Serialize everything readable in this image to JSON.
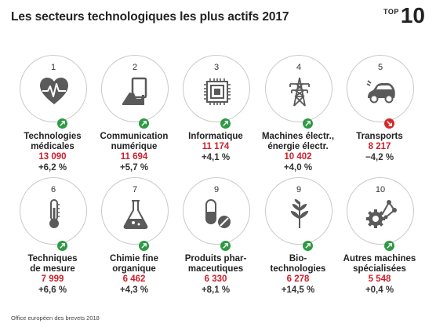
{
  "header": {
    "title": "Les secteurs technologiques les plus actifs 2017",
    "badge_top": "TOP",
    "badge_ten": "10"
  },
  "colors": {
    "up": "#2e9a44",
    "down": "#d62828",
    "count": "#cc1f2a"
  },
  "sectors": [
    {
      "rank": "1",
      "name_lines": [
        "Technologies",
        "médicales"
      ],
      "count": "13 090",
      "change": "+6,2 %",
      "trend": "up",
      "icon": "heartbeat-icon"
    },
    {
      "rank": "2",
      "name_lines": [
        "Communication",
        "numérique"
      ],
      "count": "11 694",
      "change": "+5,7 %",
      "trend": "up",
      "icon": "tablet-hand-icon"
    },
    {
      "rank": "3",
      "name_lines": [
        "Informatique",
        ""
      ],
      "count": "11 174",
      "change": "+4,1 %",
      "trend": "up",
      "icon": "chip-icon"
    },
    {
      "rank": "4",
      "name_lines": [
        "Machines électr.,",
        "énergie électr."
      ],
      "count": "10 402",
      "change": "+4,0 %",
      "trend": "up",
      "icon": "power-pylon-icon"
    },
    {
      "rank": "5",
      "name_lines": [
        "Transports",
        ""
      ],
      "count": "8 217",
      "change": "−4,2 %",
      "trend": "down",
      "icon": "electric-car-icon"
    },
    {
      "rank": "6",
      "name_lines": [
        "Techniques",
        "de mesure"
      ],
      "count": "7 999",
      "change": "+6,6 %",
      "trend": "up",
      "icon": "thermometer-icon"
    },
    {
      "rank": "7",
      "name_lines": [
        "Chimie fine",
        "organique"
      ],
      "count": "6 462",
      "change": "+4,3 %",
      "trend": "up",
      "icon": "flask-icon"
    },
    {
      "rank": "9",
      "name_lines": [
        "Produits phar-",
        "maceutiques"
      ],
      "count": "6 330",
      "change": "+8,1 %",
      "trend": "up",
      "icon": "pills-icon"
    },
    {
      "rank": "9",
      "name_lines": [
        "Bio-",
        "technologies"
      ],
      "count": "6 278",
      "change": "+14,5 %",
      "trend": "up",
      "icon": "plant-icon"
    },
    {
      "rank": "10",
      "name_lines": [
        "Autres machines",
        "spécialisées"
      ],
      "count": "5 548",
      "change": "+0,4 %",
      "trend": "up",
      "icon": "gear-network-icon"
    }
  ],
  "footer": {
    "source": "Office européen des brevets 2018"
  }
}
